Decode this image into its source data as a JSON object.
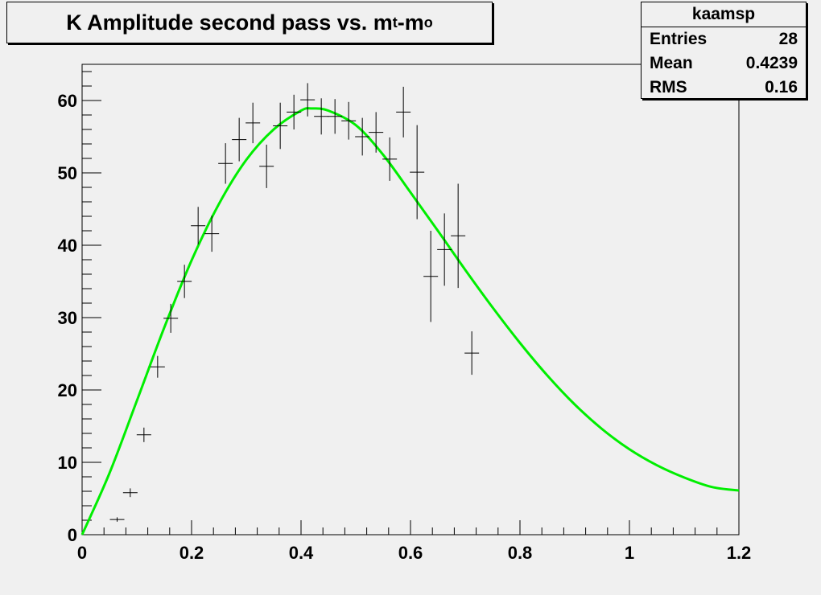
{
  "title": {
    "main": "K Amplitude second pass vs. m",
    "sub1": "t",
    "mid": "-m",
    "sub2": "o"
  },
  "stats": {
    "name": "kaamsp",
    "rows": [
      {
        "label": "Entries",
        "value": "28"
      },
      {
        "label": "Mean",
        "value": "0.4239"
      },
      {
        "label": "RMS",
        "value": "0.16"
      }
    ]
  },
  "chart_data": {
    "type": "scatter",
    "xlim": [
      0,
      1.2
    ],
    "ylim": [
      0,
      65
    ],
    "xticks": [
      "0",
      "0.2",
      "0.4",
      "0.6",
      "0.8",
      "1",
      "1.2"
    ],
    "yticks": [
      "0",
      "10",
      "20",
      "30",
      "40",
      "50",
      "60"
    ],
    "xtick_values": [
      0,
      0.2,
      0.4,
      0.6,
      0.8,
      1.0,
      1.2
    ],
    "ytick_values": [
      0,
      10,
      20,
      30,
      40,
      50,
      60
    ],
    "points": [
      {
        "x": 0.064,
        "y": 2.1,
        "err": 0.3
      },
      {
        "x": 0.088,
        "y": 5.8,
        "err": 0.6
      },
      {
        "x": 0.113,
        "y": 13.8,
        "err": 1.0
      },
      {
        "x": 0.138,
        "y": 23.2,
        "err": 1.5
      },
      {
        "x": 0.162,
        "y": 29.9,
        "err": 2.0
      },
      {
        "x": 0.187,
        "y": 35.0,
        "err": 2.3
      },
      {
        "x": 0.212,
        "y": 42.7,
        "err": 2.6
      },
      {
        "x": 0.237,
        "y": 41.6,
        "err": 2.5
      },
      {
        "x": 0.262,
        "y": 51.3,
        "err": 2.8
      },
      {
        "x": 0.287,
        "y": 54.6,
        "err": 3.0
      },
      {
        "x": 0.312,
        "y": 56.9,
        "err": 2.8
      },
      {
        "x": 0.337,
        "y": 50.9,
        "err": 3.0
      },
      {
        "x": 0.362,
        "y": 56.5,
        "err": 3.2
      },
      {
        "x": 0.387,
        "y": 58.4,
        "err": 2.4
      },
      {
        "x": 0.412,
        "y": 60.1,
        "err": 2.3
      },
      {
        "x": 0.437,
        "y": 57.8,
        "err": 2.5
      },
      {
        "x": 0.462,
        "y": 57.8,
        "err": 2.4
      },
      {
        "x": 0.487,
        "y": 57.2,
        "err": 2.6
      },
      {
        "x": 0.512,
        "y": 55.0,
        "err": 2.6
      },
      {
        "x": 0.537,
        "y": 55.6,
        "err": 2.8
      },
      {
        "x": 0.562,
        "y": 51.9,
        "err": 3.0
      },
      {
        "x": 0.587,
        "y": 58.4,
        "err": 3.5
      },
      {
        "x": 0.612,
        "y": 50.1,
        "err": 6.5
      },
      {
        "x": 0.637,
        "y": 35.7,
        "err": 6.3
      },
      {
        "x": 0.662,
        "y": 39.4,
        "err": 5.0
      },
      {
        "x": 0.687,
        "y": 41.3,
        "err": 7.2
      },
      {
        "x": 0.712,
        "y": 25.1,
        "err": 3.0
      }
    ],
    "fit_curve": {
      "color": "#00ee00",
      "x": [
        0,
        0.05,
        0.1,
        0.15,
        0.2,
        0.25,
        0.3,
        0.35,
        0.4,
        0.42,
        0.45,
        0.5,
        0.55,
        0.6,
        0.65,
        0.7,
        0.75,
        0.8,
        0.85,
        0.9,
        0.95,
        1.0,
        1.05,
        1.1,
        1.15,
        1.2
      ],
      "y": [
        0,
        8.5,
        18.5,
        28.6,
        37.9,
        45.7,
        51.8,
        56.0,
        58.6,
        58.9,
        58.6,
        56.6,
        52.5,
        47.3,
        42.0,
        36.6,
        31.4,
        26.5,
        22.0,
        18.0,
        14.6,
        11.8,
        9.6,
        7.9,
        6.6,
        6.1
      ]
    }
  }
}
